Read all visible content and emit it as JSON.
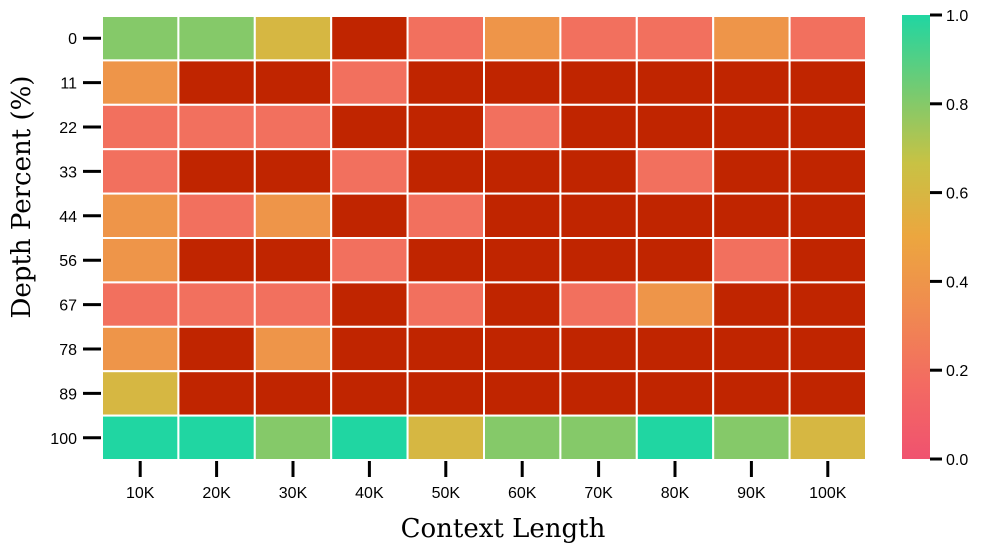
{
  "chart_data": {
    "type": "heatmap",
    "title": "",
    "xlabel": "Context Length",
    "ylabel": "Depth Percent (%)",
    "x_categories": [
      "10K",
      "20K",
      "30K",
      "40K",
      "50K",
      "60K",
      "70K",
      "80K",
      "90K",
      "100K"
    ],
    "y_categories": [
      "0",
      "11",
      "22",
      "33",
      "44",
      "56",
      "67",
      "78",
      "89",
      "100"
    ],
    "values": [
      [
        0.8,
        0.8,
        0.6,
        0.0,
        0.2,
        0.4,
        0.2,
        0.2,
        0.4,
        0.2
      ],
      [
        0.4,
        0.0,
        0.0,
        0.2,
        0.0,
        0.0,
        0.0,
        0.0,
        0.0,
        0.0
      ],
      [
        0.2,
        0.2,
        0.2,
        0.0,
        0.0,
        0.2,
        0.0,
        0.0,
        0.0,
        0.0
      ],
      [
        0.2,
        0.0,
        0.0,
        0.2,
        0.0,
        0.0,
        0.0,
        0.2,
        0.0,
        0.0
      ],
      [
        0.4,
        0.2,
        0.4,
        0.0,
        0.2,
        0.0,
        0.0,
        0.0,
        0.0,
        0.0
      ],
      [
        0.4,
        0.0,
        0.0,
        0.2,
        0.0,
        0.0,
        0.0,
        0.0,
        0.2,
        0.0
      ],
      [
        0.2,
        0.2,
        0.2,
        0.0,
        0.2,
        0.0,
        0.2,
        0.4,
        0.0,
        0.0
      ],
      [
        0.4,
        0.0,
        0.4,
        0.0,
        0.0,
        0.0,
        0.0,
        0.0,
        0.0,
        0.0
      ],
      [
        0.6,
        0.0,
        0.0,
        0.0,
        0.0,
        0.0,
        0.0,
        0.0,
        0.0,
        0.0
      ],
      [
        1.0,
        1.0,
        0.8,
        1.0,
        0.6,
        0.8,
        0.8,
        1.0,
        0.8,
        0.6
      ]
    ],
    "colorbar": {
      "range": [
        0.0,
        1.0
      ],
      "ticks": [
        "0.0",
        "0.2",
        "0.4",
        "0.6",
        "0.8",
        "1.0"
      ]
    },
    "colors": {
      "zero": "#c02500",
      "scale": [
        "#f0526f",
        "#f36a62",
        "#f08a50",
        "#eca63f",
        "#c8c244",
        "#74cb72",
        "#20d6a2"
      ],
      "cell_border": "#ffffff"
    },
    "legend": "right",
    "grid": false
  }
}
